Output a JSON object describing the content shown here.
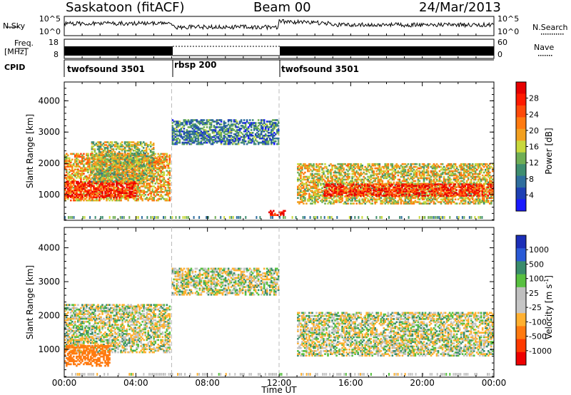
{
  "header": {
    "station": "Saskatoon (fitACF)",
    "beam": "Beam 00",
    "date": "24/Mar/2013"
  },
  "noise_panel": {
    "left_label": "N.Sky",
    "right_label": "N.Search",
    "left_ticks": [
      "10^5",
      "10^0"
    ],
    "right_ticks": [
      "10^5",
      "10^0"
    ]
  },
  "freq_panel": {
    "left_label_1": "Freq.",
    "left_label_2": "[MHz]",
    "right_label": "Nave",
    "left_ticks": [
      "18",
      "8"
    ],
    "right_ticks": [
      "60",
      "0"
    ]
  },
  "cpid": {
    "label": "CPID",
    "segments": [
      {
        "name": "twofsound 3501",
        "start_ut": 0,
        "end_ut": 6
      },
      {
        "name": "rbsp 200",
        "start_ut": 6,
        "end_ut": 12
      },
      {
        "name": "twofsound 3501",
        "start_ut": 12,
        "end_ut": 24
      }
    ]
  },
  "colors": {
    "power": [
      "#1a1aff",
      "#1e40b4",
      "#2f6e9e",
      "#3f8e70",
      "#6fae55",
      "#c8d83c",
      "#f2a020",
      "#ff7a10",
      "#ff4a0a",
      "#ff1a00",
      "#e60000"
    ],
    "velocity": [
      "#1c2fb8",
      "#2a5ad6",
      "#3a8c6c",
      "#58c040",
      "#c0c0c0",
      "#c6c6c6",
      "#ffb030",
      "#ff7a10",
      "#ff3a00",
      "#ee0000"
    ]
  },
  "chart_data": [
    {
      "type": "heatmap",
      "title": "",
      "xlabel": "Time UT",
      "ylabel": "Slant Range [km]",
      "x_ticks": [
        "00:00",
        "04:00",
        "08:00",
        "12:00",
        "16:00",
        "20:00",
        "00:00"
      ],
      "y_ticks": [
        "1000",
        "2000",
        "3000",
        "4000"
      ],
      "xlim": [
        0,
        24
      ],
      "ylim": [
        180,
        4600
      ],
      "colorbar": {
        "label": "Power [dB]",
        "ticks": [
          "4",
          "8",
          "12",
          "16",
          "20",
          "24",
          "28"
        ],
        "range": [
          0,
          30
        ]
      },
      "features": [
        {
          "t_start": 0,
          "t_end": 5.9,
          "range_start": 800,
          "range_end": 2300,
          "value_dB": 18
        },
        {
          "t_start": 0,
          "t_end": 4,
          "range_start": 900,
          "range_end": 1400,
          "value_dB": 26
        },
        {
          "t_start": 1.5,
          "t_end": 5,
          "range_start": 1400,
          "range_end": 2700,
          "value_dB": 14
        },
        {
          "t_start": 6,
          "t_end": 12,
          "range_start": 2600,
          "range_end": 3400,
          "value_dB": 8
        },
        {
          "t_start": 11.4,
          "t_end": 12.3,
          "range_start": 330,
          "range_end": 500,
          "value_dB": 28
        },
        {
          "t_start": 13,
          "t_end": 24,
          "range_start": 700,
          "range_end": 2000,
          "value_dB": 16
        },
        {
          "t_start": 14.5,
          "t_end": 24,
          "range_start": 950,
          "range_end": 1350,
          "value_dB": 26
        }
      ]
    },
    {
      "type": "heatmap",
      "title": "",
      "xlabel": "Time UT",
      "ylabel": "Slant Range [km]",
      "x_ticks": [
        "00:00",
        "04:00",
        "08:00",
        "12:00",
        "16:00",
        "20:00",
        "00:00"
      ],
      "y_ticks": [
        "1000",
        "2000",
        "3000",
        "4000"
      ],
      "xlim": [
        0,
        24
      ],
      "ylim": [
        180,
        4600
      ],
      "colorbar": {
        "label": "Velocity [m s",
        "label_sup": "-1",
        "label_end": "]",
        "ticks": [
          "1000",
          "500",
          "100",
          "25",
          "-25",
          "-100",
          "-500",
          "-1000"
        ],
        "range": [
          -1200,
          1200
        ]
      },
      "features": [
        {
          "t_start": 0,
          "t_end": 5.9,
          "range_start": 900,
          "range_end": 2300,
          "value_ms": 0
        },
        {
          "t_start": 0,
          "t_end": 2.5,
          "range_start": 500,
          "range_end": 1100,
          "value_ms": -300
        },
        {
          "t_start": 6,
          "t_end": 12,
          "range_start": 2600,
          "range_end": 3400,
          "value_ms": 0
        },
        {
          "t_start": 13,
          "t_end": 24,
          "range_start": 800,
          "range_end": 2100,
          "value_ms": 0
        }
      ]
    }
  ]
}
